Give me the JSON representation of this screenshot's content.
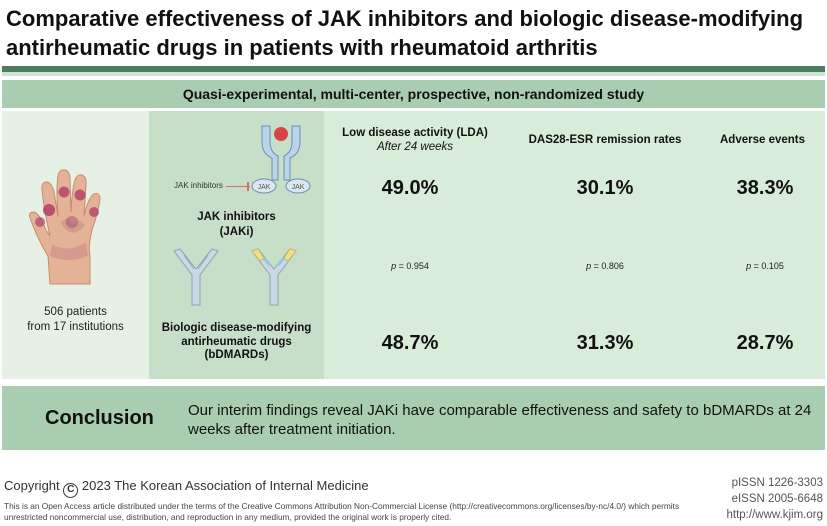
{
  "title": "Comparative effectiveness of JAK inhibitors and biologic disease-modifying antirheumatic drugs in patients with rheumatoid arthritis",
  "study_design": "Quasi-experimental, multi-center, prospective, non-randomized study",
  "patients": {
    "line1": "506 patients",
    "line2": "from 17 institutions"
  },
  "groups": {
    "jak_small_label": "JAK inhibitors",
    "jak_receptor_label": "JAK",
    "jaki_line1": "JAK inhibitors",
    "jaki_line2": "(JAKi)",
    "bdmard_line1": "Biologic disease-modifying",
    "bdmard_line2": "antirheumatic drugs",
    "bdmard_line3": "(bDMARDs)"
  },
  "outcomes": [
    {
      "header": "Low disease activity (LDA)",
      "subheader": "After 24 weeks",
      "jaki": "49.0%",
      "p": "= 0.954",
      "bdmard": "48.7%"
    },
    {
      "header": "DAS28-ESR remission rates",
      "subheader": "",
      "jaki": "30.1%",
      "p": "= 0.806",
      "bdmard": "31.3%"
    },
    {
      "header": "Adverse events",
      "subheader": "",
      "jaki": "38.3%",
      "p": "= 0.105",
      "bdmard": "28.7%"
    }
  ],
  "p_symbol": "p",
  "conclusion": {
    "heading": "Conclusion",
    "text": "Our interim findings reveal JAKi have comparable effectiveness and safety to bDMARDs at 24 weeks after treatment initiation."
  },
  "footer": {
    "copyright_prefix": "Copyright",
    "copyright_symbol": "C",
    "copyright_rest": "2023 The Korean Association of Internal Medicine",
    "license": "This is an Open Access article distributed under the terms of the Creative Commons Attribution Non-Commercial License (http://creativecommons.org/licenses/by-nc/4.0/) which permits unrestricted noncommercial use, distribution, and reproduction in any medium, provided the original work is properly cited.",
    "pissn": "pISSN 1226-3303",
    "eissn": "eISSN 2005-6648",
    "url": "http://www.kjim.org"
  },
  "colors": {
    "header_green": "#a9cdb1",
    "dark_green": "#4d7c5e",
    "accent_red": "#d86b6b"
  }
}
